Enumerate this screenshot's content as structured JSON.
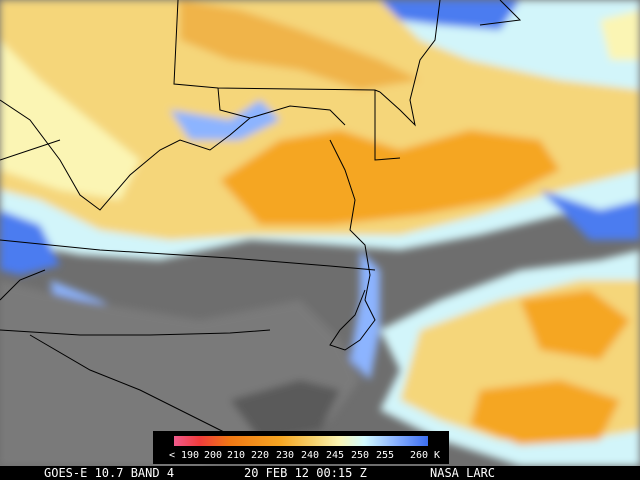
{
  "colorbar": {
    "labels": [
      "< 190",
      "200",
      "210",
      "220",
      "230",
      "240",
      "245",
      "250",
      "255",
      "260 K"
    ]
  },
  "footer": {
    "satellite": "GOES-E 10.7 BAND 4",
    "timestamp": "20 FEB 12 00:15 Z",
    "source": "NASA LARC"
  }
}
